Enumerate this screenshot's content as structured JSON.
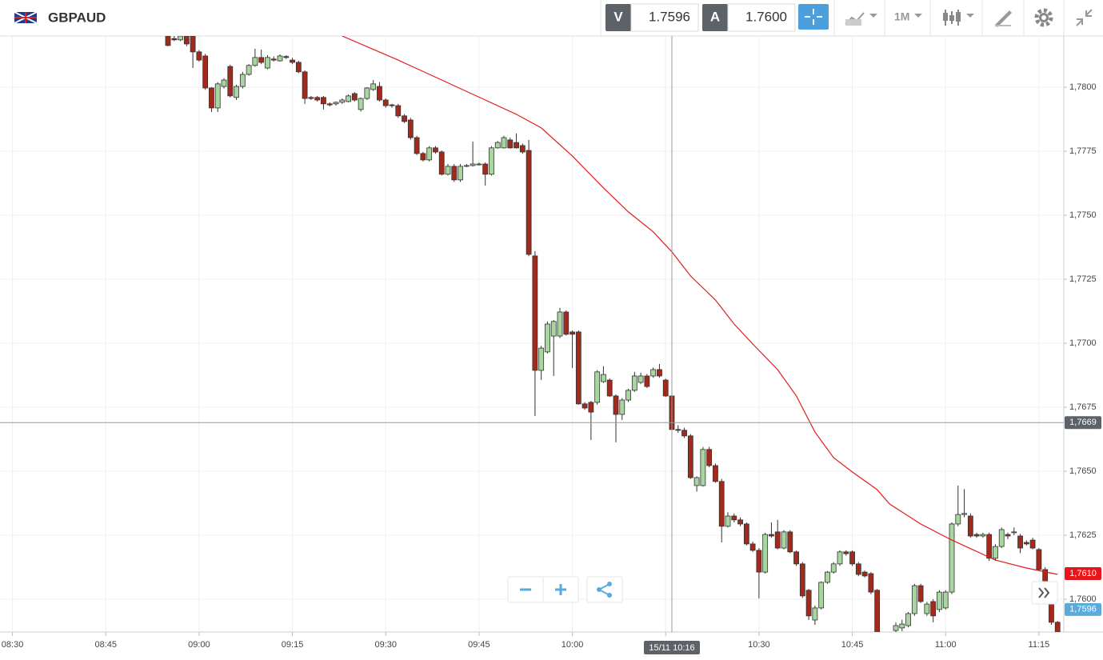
{
  "header": {
    "pair": "GBPAUD",
    "sell_label": "V",
    "sell_price": "1.7596",
    "buy_label": "A",
    "buy_price": "1.7600",
    "timeframe": "1M"
  },
  "chart_data": {
    "type": "candlestick",
    "up_color": "#a8d5a0",
    "down_color": "#a12a1c",
    "grid": true,
    "xlim": [
      "08:28",
      "11:19"
    ],
    "xticks": [
      "08:30",
      "08:45",
      "09:00",
      "09:15",
      "09:30",
      "09:45",
      "10:00",
      "10:15",
      "10:30",
      "10:45",
      "11:00",
      "11:15"
    ],
    "ylim": [
      1.75872,
      1.782
    ],
    "yticks": [
      {
        "value": 1.76,
        "label": "1,7600"
      },
      {
        "value": 1.7625,
        "label": "1,7625"
      },
      {
        "value": 1.765,
        "label": "1,7650"
      },
      {
        "value": 1.7675,
        "label": "1,7675"
      },
      {
        "value": 1.77,
        "label": "1,7700"
      },
      {
        "value": 1.7725,
        "label": "1,7725"
      },
      {
        "value": 1.775,
        "label": "1,7750"
      },
      {
        "value": 1.7775,
        "label": "1,7775"
      },
      {
        "value": 1.78,
        "label": "1,7800"
      }
    ],
    "x": [
      "08:55",
      "08:56",
      "08:57",
      "08:58",
      "08:59",
      "09:00",
      "09:01",
      "09:02",
      "09:03",
      "09:04",
      "09:05",
      "09:06",
      "09:07",
      "09:08",
      "09:09",
      "09:10",
      "09:11",
      "09:12",
      "09:13",
      "09:14",
      "09:15",
      "09:16",
      "09:17",
      "09:18",
      "09:19",
      "09:20",
      "09:21",
      "09:22",
      "09:23",
      "09:24",
      "09:25",
      "09:26",
      "09:27",
      "09:28",
      "09:29",
      "09:30",
      "09:31",
      "09:32",
      "09:33",
      "09:34",
      "09:35",
      "09:36",
      "09:37",
      "09:38",
      "09:39",
      "09:40",
      "09:41",
      "09:42",
      "09:43",
      "09:44",
      "09:45",
      "09:46",
      "09:47",
      "09:48",
      "09:49",
      "09:50",
      "09:51",
      "09:52",
      "09:53",
      "09:54",
      "09:55",
      "09:56",
      "09:57",
      "09:58",
      "09:59",
      "10:00",
      "10:01",
      "10:02",
      "10:03",
      "10:04",
      "10:05",
      "10:06",
      "10:07",
      "10:08",
      "10:09",
      "10:10",
      "10:11",
      "10:12",
      "10:13",
      "10:14",
      "10:15",
      "10:16",
      "10:17",
      "10:18",
      "10:19",
      "10:20",
      "10:21",
      "10:22",
      "10:23",
      "10:24",
      "10:25",
      "10:26",
      "10:27",
      "10:28",
      "10:29",
      "10:30",
      "10:31",
      "10:32",
      "10:33",
      "10:34",
      "10:35",
      "10:36",
      "10:37",
      "10:38",
      "10:39",
      "10:40",
      "10:41",
      "10:42",
      "10:43",
      "10:44",
      "10:45",
      "10:46",
      "10:47",
      "10:48",
      "10:49",
      "10:52",
      "10:53",
      "10:54",
      "10:55",
      "10:56",
      "10:57",
      "10:58",
      "10:59",
      "11:00",
      "11:01",
      "11:02",
      "11:03",
      "11:04",
      "11:05",
      "11:06",
      "11:07",
      "11:08",
      "11:09",
      "11:10",
      "11:11",
      "11:12",
      "11:13",
      "11:14",
      "11:15",
      "11:16",
      "11:17",
      "11:18"
    ],
    "open": [
      1.782,
      1.7819,
      1.78185,
      1.782,
      1.782,
      1.78138,
      1.78122,
      1.77997,
      1.77919,
      1.78003,
      1.78081,
      1.7796,
      1.78003,
      1.7805,
      1.78085,
      1.78116,
      1.78075,
      1.7811,
      1.78103,
      1.7812,
      1.78106,
      1.78097,
      1.7806,
      1.7796,
      1.7796,
      1.7796,
      1.77935,
      1.77935,
      1.77941,
      1.77944,
      1.77975,
      1.77913,
      1.77956,
      1.77991,
      1.78003,
      1.7795,
      1.77931,
      1.77928,
      1.77888,
      1.77872,
      1.77803,
      1.77741,
      1.77716,
      1.77763,
      1.77747,
      1.7766,
      1.77691,
      1.77638,
      1.77694,
      1.77694,
      1.777,
      1.777,
      1.7766,
      1.77763,
      1.77763,
      1.77794,
      1.77784,
      1.77772,
      1.77753,
      1.77341,
      1.76894,
      1.76966,
      1.77028,
      1.77028,
      1.77122,
      1.77044,
      1.77044,
      1.76763,
      1.76769,
      1.76769,
      1.7685,
      1.76856,
      1.76794,
      1.76722,
      1.76778,
      1.76816,
      1.76847,
      1.76872,
      1.76872,
      1.76897,
      1.76856,
      1.76794,
      1.76663,
      1.7666,
      1.76638,
      1.76444,
      1.76444,
      1.76585,
      1.76522,
      1.7646,
      1.76285,
      1.76325,
      1.7631,
      1.76294,
      1.76216,
      1.76191,
      1.76106,
      1.76253,
      1.76263,
      1.762,
      1.76263,
      1.76185,
      1.76138,
      1.76035,
      1.75919,
      1.75966,
      1.76066,
      1.76106,
      1.76138,
      1.76185,
      1.76185,
      1.76138,
      1.76106,
      1.761,
      1.76035,
      1.75878,
      1.75888,
      1.75897,
      1.75944,
      1.76053,
      1.75944,
      1.75991,
      1.7596,
      1.75966,
      1.76028,
      1.76294,
      1.76331,
      1.76325,
      1.76253,
      1.76247,
      1.76253,
      1.7616,
      1.76206,
      1.76253,
      1.76263,
      1.76247,
      1.76222,
      1.76231,
      1.76194,
      1.76116,
      1.76028,
      1.7591
    ],
    "high": [
      1.78205,
      1.782,
      1.78205,
      1.78205,
      1.78205,
      1.78145,
      1.7813,
      1.78,
      1.7802,
      1.78035,
      1.78088,
      1.7801,
      1.7806,
      1.7809,
      1.7815,
      1.78147,
      1.78125,
      1.7812,
      1.78128,
      1.78125,
      1.78115,
      1.78103,
      1.78066,
      1.77966,
      1.77966,
      1.77966,
      1.77941,
      1.77944,
      1.77956,
      1.77972,
      1.77981,
      1.7796,
      1.78,
      1.78028,
      1.7802,
      1.77956,
      1.77935,
      1.77935,
      1.77895,
      1.7788,
      1.7781,
      1.77747,
      1.7777,
      1.7777,
      1.77753,
      1.777,
      1.777,
      1.777,
      1.777,
      1.77788,
      1.77706,
      1.77706,
      1.7777,
      1.7779,
      1.7781,
      1.77803,
      1.77819,
      1.7778,
      1.77794,
      1.7736,
      1.7699,
      1.77085,
      1.7709,
      1.77138,
      1.77128,
      1.7705,
      1.7705,
      1.7677,
      1.76775,
      1.76895,
      1.7691,
      1.76862,
      1.768,
      1.76785,
      1.76822,
      1.76888,
      1.76885,
      1.7688,
      1.76905,
      1.76919,
      1.76862,
      1.768,
      1.7668,
      1.7667,
      1.76645,
      1.7648,
      1.76595,
      1.76595,
      1.7653,
      1.7647,
      1.7634,
      1.76335,
      1.7632,
      1.763,
      1.76225,
      1.762,
      1.7626,
      1.763,
      1.7631,
      1.7627,
      1.7627,
      1.7619,
      1.76145,
      1.7604,
      1.75975,
      1.7607,
      1.7611,
      1.76145,
      1.76191,
      1.76191,
      1.76191,
      1.76145,
      1.76112,
      1.76106,
      1.7604,
      1.7591,
      1.7592,
      1.7595,
      1.7606,
      1.7606,
      1.7599,
      1.76,
      1.76035,
      1.76035,
      1.763,
      1.76444,
      1.7643,
      1.76335,
      1.7626,
      1.7626,
      1.7626,
      1.76215,
      1.7628,
      1.7626,
      1.7628,
      1.76255,
      1.7623,
      1.7624,
      1.762,
      1.76125,
      1.76035,
      1.75915
    ],
    "low": [
      1.7816,
      1.7818,
      1.7818,
      1.7816,
      1.78075,
      1.781,
      1.7799,
      1.77903,
      1.77903,
      1.77995,
      1.7796,
      1.7795,
      1.77995,
      1.78045,
      1.7808,
      1.7809,
      1.7807,
      1.781,
      1.781,
      1.7811,
      1.7809,
      1.78055,
      1.77935,
      1.7795,
      1.77944,
      1.77913,
      1.77925,
      1.77928,
      1.77935,
      1.77941,
      1.77944,
      1.77905,
      1.7795,
      1.77985,
      1.77944,
      1.7792,
      1.7792,
      1.7788,
      1.7786,
      1.77795,
      1.77735,
      1.7771,
      1.7771,
      1.7774,
      1.77655,
      1.77655,
      1.7763,
      1.7763,
      1.77688,
      1.7769,
      1.77694,
      1.77616,
      1.77655,
      1.7776,
      1.7776,
      1.7776,
      1.7776,
      1.7774,
      1.7734,
      1.76716,
      1.76856,
      1.7696,
      1.76872,
      1.7702,
      1.7703,
      1.76903,
      1.7676,
      1.7674,
      1.76622,
      1.7676,
      1.76845,
      1.7679,
      1.76613,
      1.767,
      1.7677,
      1.7681,
      1.7684,
      1.76825,
      1.76865,
      1.76865,
      1.7679,
      1.76655,
      1.7665,
      1.7663,
      1.7647,
      1.7642,
      1.7644,
      1.76515,
      1.76455,
      1.76222,
      1.7628,
      1.763,
      1.76285,
      1.7621,
      1.76185,
      1.76003,
      1.761,
      1.7624,
      1.76195,
      1.76195,
      1.7618,
      1.7613,
      1.76005,
      1.75919,
      1.759,
      1.7596,
      1.7606,
      1.761,
      1.7613,
      1.7617,
      1.7613,
      1.7609,
      1.76085,
      1.7602,
      1.7585,
      1.7587,
      1.75875,
      1.7589,
      1.75935,
      1.75985,
      1.75935,
      1.7591,
      1.7595,
      1.7596,
      1.7602,
      1.76285,
      1.7632,
      1.7624,
      1.7624,
      1.7624,
      1.7615,
      1.7615,
      1.762,
      1.76235,
      1.7625,
      1.7618,
      1.7621,
      1.76195,
      1.7611,
      1.7606,
      1.759,
      1.7586
    ],
    "close": [
      1.78163,
      1.78185,
      1.782,
      1.78169,
      1.78138,
      1.78106,
      1.77997,
      1.77919,
      1.78013,
      1.78028,
      1.77966,
      1.78003,
      1.7805,
      1.78085,
      1.78116,
      1.78097,
      1.78116,
      1.78106,
      1.78122,
      1.78116,
      1.78097,
      1.7806,
      1.77956,
      1.77956,
      1.7795,
      1.77935,
      1.77931,
      1.77941,
      1.7795,
      1.77966,
      1.7795,
      1.77956,
      1.77997,
      1.78013,
      1.7795,
      1.77928,
      1.77928,
      1.77888,
      1.77866,
      1.77803,
      1.77741,
      1.77716,
      1.77763,
      1.77747,
      1.7766,
      1.77691,
      1.77638,
      1.77691,
      1.77694,
      1.777,
      1.777,
      1.7766,
      1.77763,
      1.77784,
      1.77803,
      1.77763,
      1.77763,
      1.77747,
      1.77347,
      1.76894,
      1.76981,
      1.77075,
      1.77085,
      1.77122,
      1.77035,
      1.77035,
      1.76763,
      1.76747,
      1.76731,
      1.76888,
      1.76878,
      1.76794,
      1.76722,
      1.76778,
      1.76816,
      1.76872,
      1.76872,
      1.76831,
      1.76897,
      1.76872,
      1.76794,
      1.76663,
      1.7666,
      1.76638,
      1.76475,
      1.76475,
      1.76585,
      1.76522,
      1.7646,
      1.76285,
      1.76325,
      1.7631,
      1.76294,
      1.76216,
      1.76191,
      1.76106,
      1.76253,
      1.76247,
      1.762,
      1.76263,
      1.76185,
      1.76138,
      1.76013,
      1.75935,
      1.75966,
      1.76066,
      1.76106,
      1.76138,
      1.76185,
      1.76178,
      1.76138,
      1.76097,
      1.76091,
      1.76028,
      1.7586,
      1.75897,
      1.75903,
      1.75944,
      1.76053,
      1.75991,
      1.75981,
      1.75935,
      1.76028,
      1.76028,
      1.76294,
      1.76331,
      1.76335,
      1.76247,
      1.76247,
      1.76253,
      1.7616,
      1.76206,
      1.76272,
      1.76247,
      1.76263,
      1.762,
      1.76216,
      1.762,
      1.76116,
      1.76066,
      1.7591,
      1.75872
    ],
    "moving_average": {
      "color": "#e31b1b",
      "x": [
        "09:23",
        "09:32",
        "09:39",
        "09:46",
        "09:51",
        "09:55",
        "10:00",
        "10:05",
        "10:09",
        "10:13",
        "10:16",
        "10:19",
        "10:23",
        "10:26",
        "10:29",
        "10:33",
        "10:36",
        "10:39",
        "10:42",
        "10:45",
        "10:49",
        "10:51",
        "10:56",
        "11:01",
        "11:08",
        "11:13",
        "11:18"
      ],
      "values": [
        1.782,
        1.78106,
        1.78028,
        1.7795,
        1.77894,
        1.77841,
        1.77731,
        1.77607,
        1.77513,
        1.77435,
        1.77357,
        1.77263,
        1.77169,
        1.77075,
        1.76997,
        1.76897,
        1.76794,
        1.76653,
        1.76553,
        1.76497,
        1.76428,
        1.76372,
        1.76294,
        1.76231,
        1.76153,
        1.76122,
        1.76097
      ]
    },
    "crosshair": {
      "x": "15/11 10:16",
      "y": {
        "value": 1.7669,
        "label": "1,7669"
      }
    },
    "price_tags": [
      {
        "value": 1.761,
        "label": "1,7610",
        "color": "#e8161b"
      },
      {
        "value": 1.7596,
        "label": "1,7596",
        "color": "#5aabdb"
      }
    ]
  }
}
